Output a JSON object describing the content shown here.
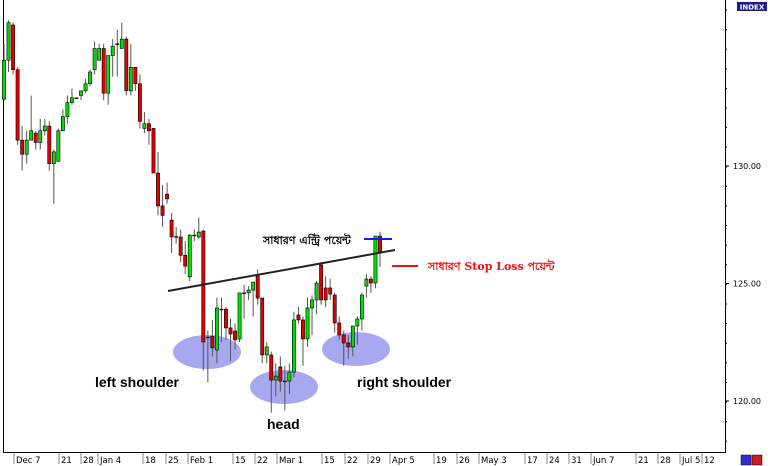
{
  "index_badge": "INDEX",
  "chart_data": {
    "type": "candlestick",
    "y_ticks": [
      "130.00",
      "125.00",
      "120.00"
    ],
    "y_tick_values": [
      130,
      125,
      120
    ],
    "ylim": [
      117.8,
      137.1
    ],
    "x_ticks": [
      "Dec 7",
      "21",
      "28",
      "Jan 4",
      "18",
      "25",
      "Feb 1",
      "15",
      "22",
      "Mar 1",
      "15",
      "22",
      "29",
      "Apr 5",
      "19",
      "26",
      "May 3",
      "17",
      "24",
      "31",
      "Jun 7",
      "21",
      "28",
      "Jul 5",
      "12"
    ],
    "grid": false,
    "up_color": "#00e000",
    "down_color": "#e00000",
    "ohlc": [
      [
        132.85,
        135.2,
        132.8,
        134.5
      ],
      [
        134.5,
        136.2,
        134.0,
        136.1
      ],
      [
        136.0,
        136.1,
        133.9,
        134.1
      ],
      [
        134.1,
        134.2,
        130.9,
        131.1
      ],
      [
        131.1,
        131.7,
        129.8,
        130.5
      ],
      [
        130.5,
        131.5,
        130.1,
        131.1
      ],
      [
        131.1,
        133.0,
        131.1,
        131.5
      ],
      [
        131.4,
        131.5,
        130.7,
        131.0
      ],
      [
        131.0,
        132.0,
        130.7,
        131.5
      ],
      [
        131.5,
        132.0,
        131.3,
        131.7
      ],
      [
        131.7,
        131.9,
        129.8,
        130.1
      ],
      [
        130.1,
        130.7,
        128.4,
        130.6
      ],
      [
        130.2,
        131.6,
        130.2,
        131.5
      ],
      [
        131.5,
        132.4,
        131.5,
        132.1
      ],
      [
        132.1,
        133.0,
        131.8,
        132.7
      ],
      [
        132.7,
        133.3,
        132.6,
        132.9
      ],
      [
        132.9,
        132.9,
        132.9,
        132.9
      ],
      [
        133.0,
        133.2,
        132.8,
        133.2
      ],
      [
        133.2,
        133.7,
        133.1,
        133.5
      ],
      [
        133.5,
        134.1,
        133.4,
        134.0
      ],
      [
        134.1,
        135.3,
        133.9,
        135.0
      ],
      [
        134.5,
        135.2,
        134.5,
        135.0
      ],
      [
        135.0,
        135.2,
        132.8,
        133.1
      ],
      [
        133.1,
        134.7,
        132.6,
        134.7
      ],
      [
        134.7,
        135.4,
        133.8,
        135.1
      ],
      [
        135.2,
        135.8,
        133.8,
        135.2
      ],
      [
        135.0,
        136.1,
        135.0,
        135.4
      ],
      [
        135.4,
        135.5,
        133.0,
        133.2
      ],
      [
        133.2,
        135.2,
        133.0,
        134.2
      ],
      [
        134.2,
        134.2,
        133.2,
        133.5
      ],
      [
        133.5,
        133.9,
        131.6,
        131.9
      ],
      [
        131.6,
        132.3,
        131.4,
        131.8
      ],
      [
        131.8,
        132.0,
        130.9,
        131.5
      ],
      [
        131.6,
        131.6,
        129.7,
        129.7
      ],
      [
        129.7,
        130.6,
        127.9,
        128.3
      ],
      [
        128.3,
        129.2,
        127.4,
        127.9
      ],
      [
        128.8,
        129.3,
        128.4,
        128.6
      ],
      [
        127.7,
        128.0,
        126.3,
        126.98
      ],
      [
        127.0,
        127.4,
        126.7,
        127.0
      ],
      [
        126.98,
        127.3,
        125.9,
        126.2
      ],
      [
        126.2,
        126.8,
        125.4,
        125.74
      ],
      [
        125.28,
        127.1,
        125.1,
        127.06
      ],
      [
        127.06,
        127.3,
        126.8,
        127.06
      ],
      [
        126.98,
        127.8,
        126.9,
        127.19
      ],
      [
        127.23,
        127.3,
        121.3,
        122.51
      ],
      [
        122.72,
        123.0,
        120.8,
        122.72
      ],
      [
        122.76,
        123.45,
        121.9,
        122.26
      ],
      [
        122.17,
        124.4,
        121.6,
        123.96
      ],
      [
        123.91,
        124.4,
        122.5,
        123.91
      ],
      [
        123.91,
        124.0,
        122.6,
        123.11
      ],
      [
        123.11,
        123.5,
        121.7,
        122.85
      ],
      [
        122.98,
        123.3,
        122.2,
        122.6
      ],
      [
        122.64,
        124.6,
        122.5,
        124.6
      ],
      [
        124.6,
        124.95,
        123.5,
        124.6
      ],
      [
        124.6,
        124.9,
        124.3,
        124.72
      ],
      [
        124.72,
        124.95,
        123.6,
        125.06
      ],
      [
        125.32,
        125.6,
        124.1,
        124.38
      ],
      [
        124.38,
        124.4,
        121.6,
        121.96
      ],
      [
        121.96,
        122.5,
        121.6,
        122.3
      ],
      [
        121.96,
        122.1,
        119.5,
        120.89
      ],
      [
        120.89,
        121.6,
        120.2,
        121.06
      ],
      [
        121.45,
        121.9,
        120.4,
        120.85
      ],
      [
        120.85,
        121.5,
        119.6,
        120.85
      ],
      [
        120.85,
        121.6,
        120.3,
        121.23
      ],
      [
        121.23,
        123.8,
        121.0,
        123.45
      ],
      [
        123.66,
        124.0,
        123.3,
        123.45
      ],
      [
        123.45,
        123.6,
        121.5,
        122.64
      ],
      [
        122.64,
        124.4,
        122.3,
        123.96
      ],
      [
        123.96,
        124.5,
        122.8,
        124.3
      ],
      [
        124.3,
        125.1,
        123.7,
        125.02
      ],
      [
        125.79,
        125.9,
        124.1,
        124.3
      ],
      [
        124.81,
        125.3,
        124.0,
        124.3
      ],
      [
        124.81,
        125.2,
        124.3,
        124.55
      ],
      [
        124.51,
        124.6,
        122.9,
        123.32
      ],
      [
        123.32,
        123.6,
        122.6,
        122.81
      ],
      [
        122.81,
        123.0,
        121.5,
        122.47
      ],
      [
        122.47,
        122.8,
        121.8,
        122.3
      ],
      [
        122.3,
        123.2,
        121.9,
        123.19
      ],
      [
        123.19,
        123.6,
        122.4,
        123.49
      ],
      [
        123.49,
        124.6,
        123.0,
        124.51
      ],
      [
        124.89,
        125.4,
        124.4,
        125.19
      ],
      [
        125.19,
        125.3,
        124.6,
        125.02
      ],
      [
        125.02,
        126.9,
        124.8,
        127.02
      ],
      [
        127.02,
        127.2,
        125.7,
        126.34
      ]
    ],
    "annotations": {
      "left_shoulder": "left shoulder",
      "head": "head",
      "right_shoulder": "right shoulder",
      "entry_label": "সাধারণ এন্ট্রি পয়েন্ট",
      "stop_loss_label": "সাধারণ Stop Loss পয়েন্ট",
      "neckline_color": "#222222",
      "ellipse_color": "#a8a8f0",
      "entry_color": "#1a1aff",
      "stop_color": "#ee1111"
    }
  }
}
